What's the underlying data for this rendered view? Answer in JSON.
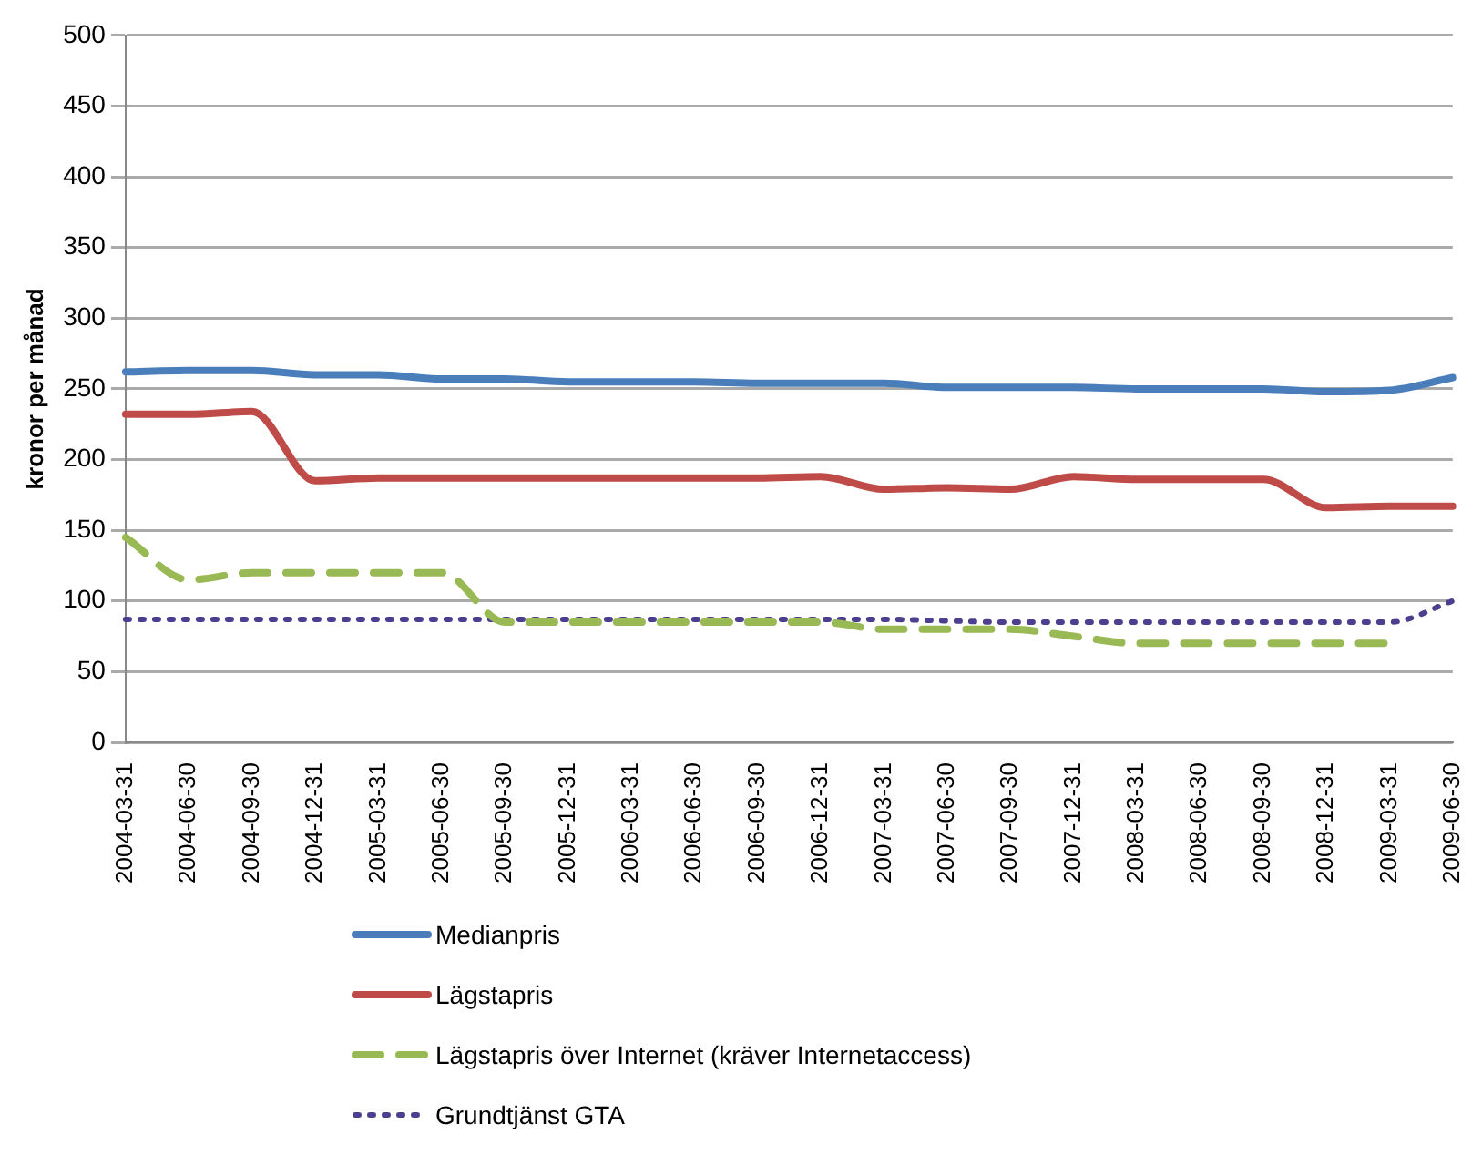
{
  "chart_data": {
    "type": "line",
    "ylabel": "kronor per månad",
    "categories": [
      "2004-03-31",
      "2004-06-30",
      "2004-09-30",
      "2004-12-31",
      "2005-03-31",
      "2005-06-30",
      "2005-09-30",
      "2005-12-31",
      "2006-03-31",
      "2006-06-30",
      "2006-09-30",
      "2006-12-31",
      "2007-03-31",
      "2007-06-30",
      "2007-09-30",
      "2007-12-31",
      "2008-03-31",
      "2008-06-30",
      "2008-09-30",
      "2008-12-31",
      "2009-03-31",
      "2009-06-30"
    ],
    "series": [
      {
        "name": "Medianpris",
        "color": "#4a7ebb",
        "line_style": "solid",
        "values": [
          262,
          263,
          263,
          260,
          260,
          257,
          257,
          255,
          255,
          255,
          254,
          254,
          254,
          251,
          251,
          251,
          250,
          250,
          250,
          248,
          249,
          258
        ]
      },
      {
        "name": "Lägstapris",
        "color": "#be4b48",
        "line_style": "solid",
        "values": [
          232,
          232,
          234,
          185,
          187,
          187,
          187,
          187,
          187,
          187,
          187,
          188,
          179,
          180,
          179,
          188,
          186,
          186,
          186,
          166,
          167,
          167
        ]
      },
      {
        "name": "Lägstapris över Internet (kräver Internetaccess)",
        "color": "#98b954",
        "line_style": "dashed",
        "values": [
          145,
          115,
          120,
          120,
          120,
          120,
          85,
          85,
          85,
          85,
          85,
          85,
          80,
          80,
          80,
          75,
          70,
          70,
          70,
          70,
          70,
          null
        ]
      },
      {
        "name": "Grundtjänst GTA",
        "color": "#4d3f8e",
        "line_style": "dotted",
        "values": [
          87,
          87,
          87,
          87,
          87,
          87,
          87,
          87,
          87,
          87,
          87,
          87,
          87,
          86,
          85,
          85,
          85,
          85,
          85,
          85,
          85,
          100
        ]
      }
    ],
    "ylim": [
      0,
      500
    ],
    "yticks": [
      0,
      50,
      100,
      150,
      200,
      250,
      300,
      350,
      400,
      450,
      500
    ],
    "grid": "y",
    "legend": "bottom",
    "marker": "none"
  }
}
